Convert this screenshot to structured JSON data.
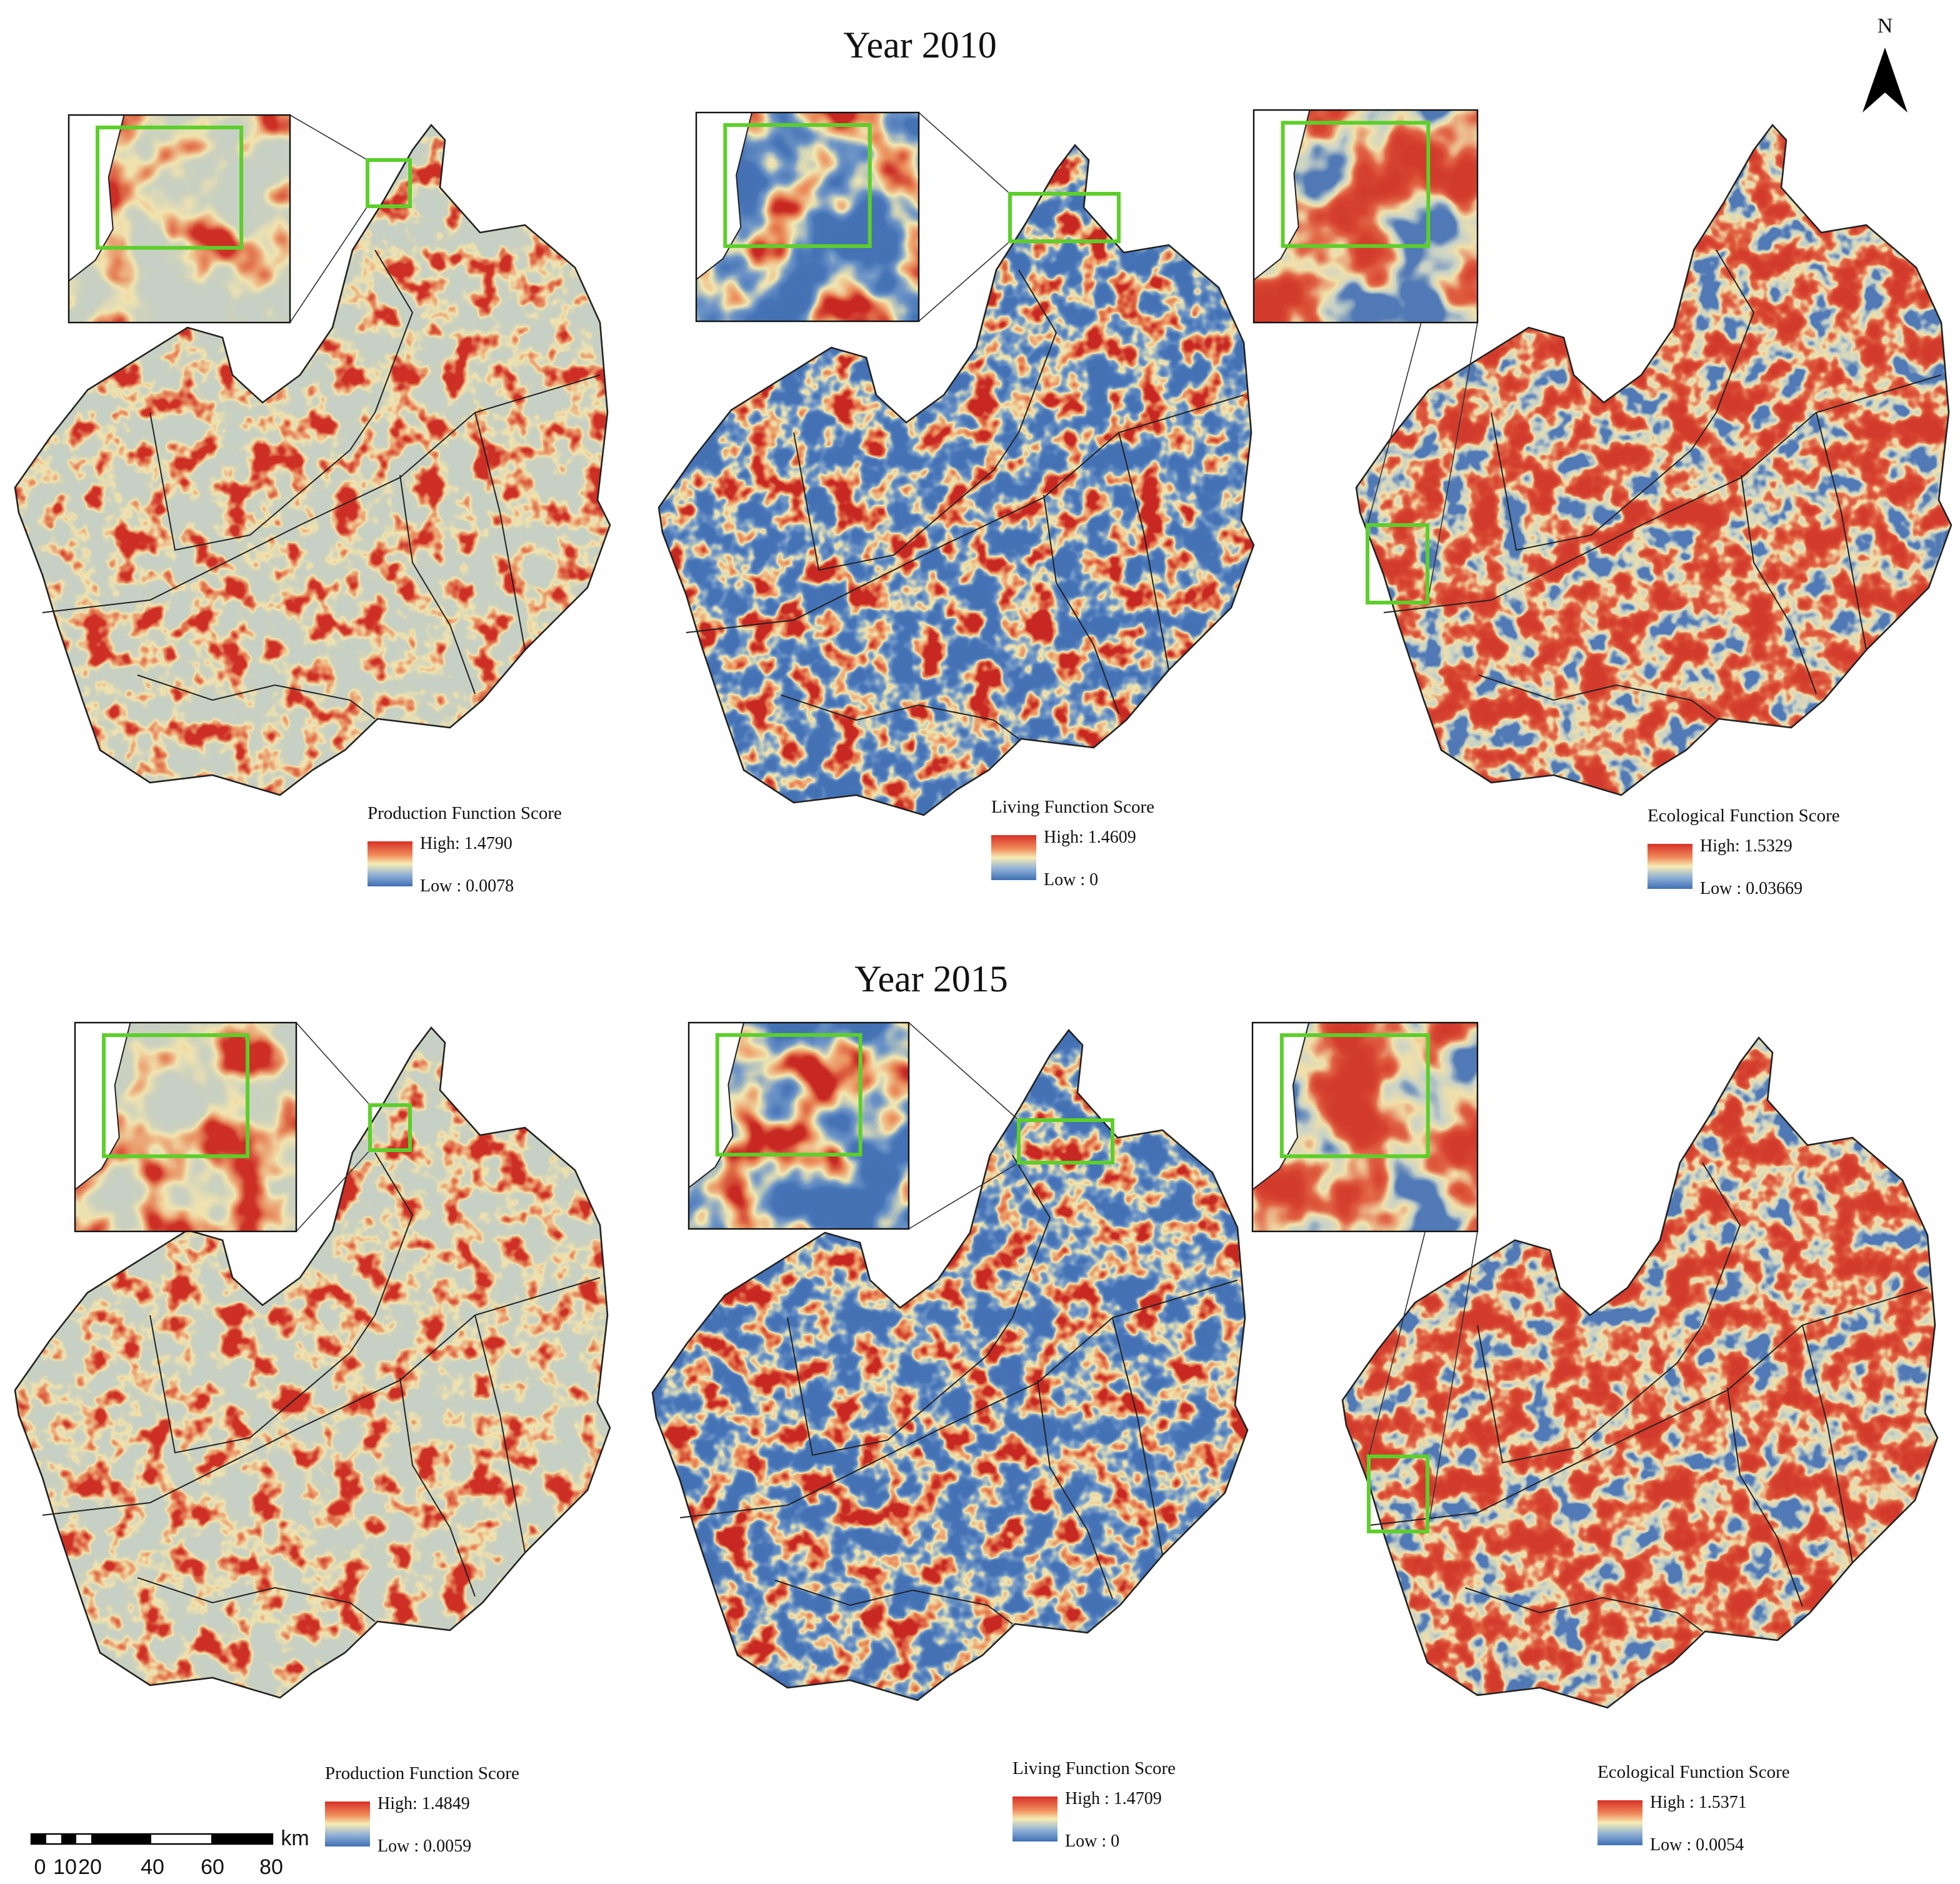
{
  "north_arrow": {
    "label": "N"
  },
  "panels": [
    {
      "title": "Year 2010",
      "maps": [
        {
          "legend": {
            "title": "Production Function Score",
            "high": "High: 1.4790",
            "low": "Low : 0.0078"
          }
        },
        {
          "legend": {
            "title": "Living Function Score",
            "high": "High: 1.4609",
            "low": "Low : 0"
          }
        },
        {
          "legend": {
            "title": "Ecological Function Score",
            "high": "High: 1.5329",
            "low": "Low : 0.03669"
          }
        }
      ]
    },
    {
      "title": "Year 2015",
      "maps": [
        {
          "legend": {
            "title": "Production Function Score",
            "high": "High: 1.4849",
            "low": "Low : 0.0059"
          }
        },
        {
          "legend": {
            "title": "Living Function Score",
            "high": "High : 1.4709",
            "low": "Low : 0"
          }
        },
        {
          "legend": {
            "title": "Ecological Function Score",
            "high": "High : 1.5371",
            "low": "Low : 0.0054"
          }
        }
      ]
    }
  ],
  "scale_bar": {
    "unit": "km",
    "labels": [
      0,
      10,
      20,
      40,
      60,
      80
    ]
  }
}
